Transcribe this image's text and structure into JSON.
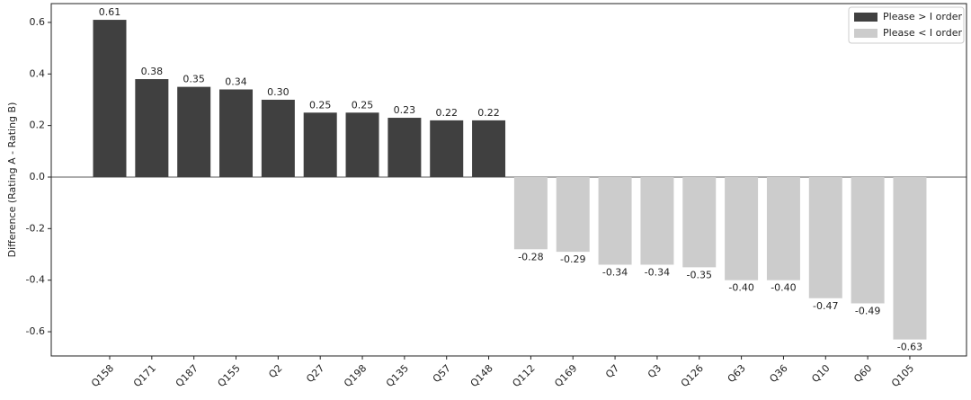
{
  "chart_data": {
    "type": "bar",
    "ylabel": "Difference (Rating A - Rating B)",
    "categories": [
      "Q158",
      "Q171",
      "Q187",
      "Q155",
      "Q2",
      "Q27",
      "Q198",
      "Q135",
      "Q57",
      "Q148",
      "Q112",
      "Q169",
      "Q7",
      "Q3",
      "Q126",
      "Q63",
      "Q36",
      "Q10",
      "Q60",
      "Q105"
    ],
    "series": [
      {
        "name": "Please > I order",
        "color": "#404040",
        "values": [
          0.61,
          0.38,
          0.35,
          0.34,
          0.3,
          0.25,
          0.25,
          0.23,
          0.22,
          0.22,
          null,
          null,
          null,
          null,
          null,
          null,
          null,
          null,
          null,
          null
        ],
        "value_labels": [
          "0.61",
          "0.38",
          "0.35",
          "0.34",
          "0.30",
          "0.25",
          "0.25",
          "0.23",
          "0.22",
          "0.22",
          null,
          null,
          null,
          null,
          null,
          null,
          null,
          null,
          null,
          null
        ]
      },
      {
        "name": "Please < I order",
        "color": "#cccccc",
        "values": [
          null,
          null,
          null,
          null,
          null,
          null,
          null,
          null,
          null,
          null,
          -0.28,
          -0.29,
          -0.34,
          -0.34,
          -0.35,
          -0.4,
          -0.4,
          -0.47,
          -0.49,
          -0.63
        ],
        "value_labels": [
          null,
          null,
          null,
          null,
          null,
          null,
          null,
          null,
          null,
          null,
          "-0.28",
          "-0.29",
          "-0.34",
          "-0.34",
          "-0.35",
          "-0.40",
          "-0.40",
          "-0.47",
          "-0.49",
          "-0.63"
        ]
      }
    ],
    "ylim": [
      -0.694,
      0.673
    ],
    "yticks": [
      -0.6,
      -0.4,
      -0.2,
      {
        "value": 0,
        "label": "0.0"
      },
      0.2,
      0.4,
      0.6
    ],
    "zero_line": true,
    "legend": "upper-right"
  }
}
